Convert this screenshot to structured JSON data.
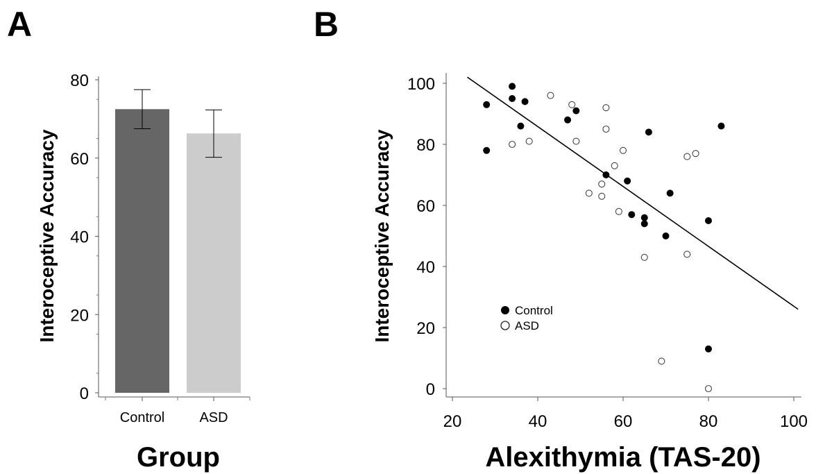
{
  "chart_data": [
    {
      "panel": "A",
      "type": "bar",
      "categories": [
        "Control",
        "ASD"
      ],
      "values": [
        72.5,
        66.3
      ],
      "error_bars": [
        {
          "low": 67.5,
          "high": 77.5
        },
        {
          "low": 60.2,
          "high": 72.3
        }
      ],
      "colors": [
        "#666666",
        "#cccccc"
      ],
      "xlabel": "Group",
      "ylabel": "Interoceptive Accuracy",
      "ylim": [
        0,
        80
      ],
      "yticks": [
        0,
        20,
        40,
        60,
        80
      ],
      "grid": false
    },
    {
      "panel": "B",
      "type": "scatter",
      "xlabel": "Alexithymia (TAS-20)",
      "ylabel": "Interoceptive Accuracy",
      "xlim": [
        20,
        100
      ],
      "ylim": [
        0,
        100
      ],
      "xticks": [
        20,
        40,
        60,
        80,
        100
      ],
      "yticks": [
        0,
        20,
        40,
        60,
        80,
        100
      ],
      "grid": false,
      "legend_position": "bottom-left",
      "series": [
        {
          "name": "Control",
          "marker": "filled-circle",
          "points": [
            [
              28,
              93
            ],
            [
              28,
              78
            ],
            [
              34,
              99
            ],
            [
              34,
              95
            ],
            [
              36,
              86
            ],
            [
              37,
              94
            ],
            [
              47,
              88
            ],
            [
              49,
              91
            ],
            [
              56,
              70
            ],
            [
              61,
              68
            ],
            [
              62,
              57
            ],
            [
              65,
              56
            ],
            [
              65,
              54
            ],
            [
              66,
              84
            ],
            [
              70,
              50
            ],
            [
              71,
              64
            ],
            [
              80,
              55
            ],
            [
              80,
              13
            ],
            [
              83,
              86
            ]
          ]
        },
        {
          "name": "ASD",
          "marker": "open-circle",
          "points": [
            [
              34,
              80
            ],
            [
              38,
              81
            ],
            [
              43,
              96
            ],
            [
              48,
              93
            ],
            [
              49,
              81
            ],
            [
              52,
              64
            ],
            [
              55,
              67
            ],
            [
              55,
              63
            ],
            [
              56,
              92
            ],
            [
              56,
              85
            ],
            [
              58,
              73
            ],
            [
              59,
              58
            ],
            [
              60,
              78
            ],
            [
              65,
              43
            ],
            [
              69,
              9
            ],
            [
              75,
              76
            ],
            [
              75,
              44
            ],
            [
              77,
              77
            ],
            [
              80,
              0
            ]
          ]
        }
      ],
      "regression_line": {
        "x": [
          23.5,
          101
        ],
        "y": [
          102,
          26
        ]
      }
    }
  ]
}
